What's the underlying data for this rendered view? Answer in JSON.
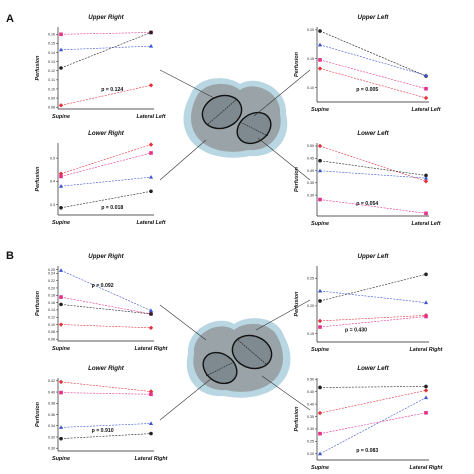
{
  "panels": [
    {
      "label": "A"
    },
    {
      "label": "B"
    }
  ],
  "chart_data": [
    {
      "type": "line",
      "panel": "A",
      "title": "Upper Right",
      "ylabel": "Perfusion",
      "categories": [
        "Supine",
        "Lateral Left"
      ],
      "yticks": [
        "0.08",
        "0.09",
        "0.10",
        "0.11",
        "0.12",
        "0.13",
        "0.14",
        "0.15",
        "0.16"
      ],
      "ylim": [
        0.078,
        0.168
      ],
      "p_text": "p = 0.124",
      "series": [
        {
          "color": "#e8308a",
          "marker": "square",
          "values": [
            0.16,
            0.162
          ]
        },
        {
          "color": "#3a55d0",
          "marker": "triangle",
          "values": [
            0.143,
            0.147
          ]
        },
        {
          "color": "#222222",
          "marker": "circle",
          "values": [
            0.123,
            0.162
          ]
        },
        {
          "color": "#e8303a",
          "marker": "diamond",
          "values": [
            0.082,
            0.104
          ]
        }
      ]
    },
    {
      "type": "line",
      "panel": "A",
      "title": "Upper Left",
      "ylabel": "Perfusion",
      "categories": [
        "Supine",
        "Lateral Left"
      ],
      "yticks": [
        "0.10",
        "0.15",
        "0.20"
      ],
      "ylim": [
        0.075,
        0.205
      ],
      "p_text": "p = 0.005",
      "series": [
        {
          "color": "#222222",
          "marker": "circle",
          "values": [
            0.198,
            0.12
          ]
        },
        {
          "color": "#3a55d0",
          "marker": "triangle",
          "values": [
            0.174,
            0.121
          ]
        },
        {
          "color": "#e8308a",
          "marker": "square",
          "values": [
            0.148,
            0.098
          ]
        },
        {
          "color": "#e8303a",
          "marker": "diamond",
          "values": [
            0.133,
            0.082
          ]
        }
      ]
    },
    {
      "type": "line",
      "panel": "A",
      "title": "Lower Right",
      "ylabel": "Perfusion",
      "categories": [
        "Supine",
        "Lateral Left"
      ],
      "yticks": [
        "0.3",
        "0.4",
        "0.5"
      ],
      "ylim": [
        0.255,
        0.565
      ],
      "p_text": "p = 0.018",
      "series": [
        {
          "color": "#e8303a",
          "marker": "diamond",
          "values": [
            0.433,
            0.558
          ]
        },
        {
          "color": "#e8308a",
          "marker": "square",
          "values": [
            0.421,
            0.522
          ]
        },
        {
          "color": "#3a55d0",
          "marker": "triangle",
          "values": [
            0.379,
            0.418
          ]
        },
        {
          "color": "#222222",
          "marker": "circle",
          "values": [
            0.286,
            0.357
          ]
        }
      ]
    },
    {
      "type": "line",
      "panel": "A",
      "title": "Lower Left",
      "ylabel": "Perfusion",
      "categories": [
        "Supine",
        "Lateral Left"
      ],
      "yticks": [
        "0.30",
        "0.35",
        "0.40",
        "0.45",
        "0.50"
      ],
      "ylim": [
        0.215,
        0.512
      ],
      "p_text": "p = 0.054",
      "series": [
        {
          "color": "#e8303a",
          "marker": "diamond",
          "values": [
            0.5,
            0.356
          ]
        },
        {
          "color": "#222222",
          "marker": "circle",
          "values": [
            0.44,
            0.38
          ]
        },
        {
          "color": "#3a55d0",
          "marker": "triangle",
          "values": [
            0.399,
            0.369
          ]
        },
        {
          "color": "#e8308a",
          "marker": "square",
          "values": [
            0.282,
            0.226
          ]
        }
      ]
    },
    {
      "type": "line",
      "panel": "B",
      "title": "Upper Right",
      "ylabel": "Perfusion",
      "categories": [
        "Supine",
        "Lateral Right"
      ],
      "yticks": [
        "0.06",
        "0.08",
        "0.10",
        "0.12",
        "0.14",
        "0.16",
        "0.18",
        "0.20",
        "0.22",
        "0.24",
        "0.25"
      ],
      "ylim": [
        0.055,
        0.26
      ],
      "p_text": "p = 0.092",
      "series": [
        {
          "color": "#3a55d0",
          "marker": "triangle",
          "values": [
            0.248,
            0.138
          ]
        },
        {
          "color": "#e8308a",
          "marker": "square",
          "values": [
            0.175,
            0.129
          ]
        },
        {
          "color": "#222222",
          "marker": "circle",
          "values": [
            0.155,
            0.129
          ]
        },
        {
          "color": "#e8303a",
          "marker": "diamond",
          "values": [
            0.1,
            0.091
          ]
        }
      ]
    },
    {
      "type": "line",
      "panel": "B",
      "title": "Upper Left",
      "ylabel": "Perfusion",
      "categories": [
        "Supine",
        "Lateral Right"
      ],
      "yticks": [
        "0.15",
        "0.20",
        "0.25"
      ],
      "ylim": [
        0.135,
        0.272
      ],
      "p_text": "p = 0.430",
      "series": [
        {
          "color": "#222222",
          "marker": "circle",
          "values": [
            0.209,
            0.257
          ]
        },
        {
          "color": "#3a55d0",
          "marker": "triangle",
          "values": [
            0.227,
            0.206
          ]
        },
        {
          "color": "#e8303a",
          "marker": "diamond",
          "values": [
            0.173,
            0.183
          ]
        },
        {
          "color": "#e8308a",
          "marker": "square",
          "values": [
            0.162,
            0.181
          ]
        }
      ]
    },
    {
      "type": "line",
      "panel": "B",
      "title": "Lower Right",
      "ylabel": "Perfusion",
      "categories": [
        "Supine",
        "Lateral Right"
      ],
      "yticks": [
        "0.30",
        "0.32",
        "0.34",
        "0.36",
        "0.38",
        "0.40",
        "0.42"
      ],
      "ylim": [
        0.295,
        0.425
      ],
      "p_text": "p = 0.910",
      "series": [
        {
          "color": "#e8303a",
          "marker": "diamond",
          "values": [
            0.418,
            0.401
          ]
        },
        {
          "color": "#e8308a",
          "marker": "square",
          "values": [
            0.399,
            0.396
          ]
        },
        {
          "color": "#3a55d0",
          "marker": "triangle",
          "values": [
            0.337,
            0.344
          ]
        },
        {
          "color": "#222222",
          "marker": "circle",
          "values": [
            0.317,
            0.326
          ]
        }
      ]
    },
    {
      "type": "line",
      "panel": "B",
      "title": "Lower Left",
      "ylabel": "Perfusion",
      "categories": [
        "Supine",
        "Lateral Right"
      ],
      "yticks": [
        "0.20",
        "0.25",
        "0.30",
        "0.35",
        "0.40",
        "0.45",
        "0.50"
      ],
      "ylim": [
        0.175,
        0.505
      ],
      "p_text": "p = 0.083",
      "series": [
        {
          "color": "#222222",
          "marker": "circle",
          "values": [
            0.467,
            0.471
          ]
        },
        {
          "color": "#e8303a",
          "marker": "diamond",
          "values": [
            0.364,
            0.455
          ]
        },
        {
          "color": "#e8308a",
          "marker": "square",
          "values": [
            0.281,
            0.365
          ]
        },
        {
          "color": "#3a55d0",
          "marker": "triangle",
          "values": [
            0.2,
            0.426
          ]
        }
      ]
    }
  ]
}
